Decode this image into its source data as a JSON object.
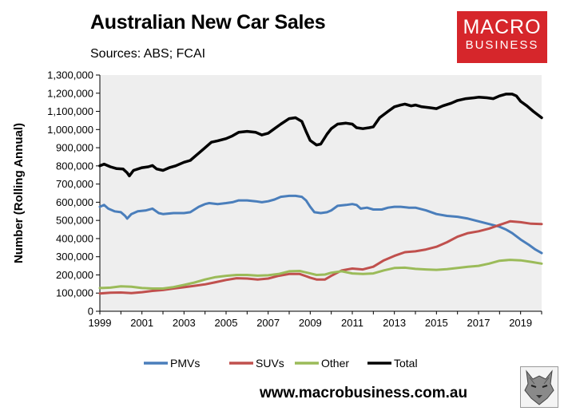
{
  "header": {
    "title": "Australian New Car Sales",
    "subtitle": "Sources: ABS; FCAI"
  },
  "logo": {
    "line1": "MACRO",
    "line2": "BUSINESS",
    "color": "#d6262b"
  },
  "footer": {
    "url": "www.macrobusiness.com.au"
  },
  "colors": {
    "pmv": "#4a7ebb",
    "suv": "#c0504d",
    "other": "#9bbb59",
    "total": "#000000",
    "plot_bg": "#eeeeee"
  },
  "chart_data": {
    "type": "line",
    "title": "Australian New Car Sales",
    "ylabel": "Number (Rolling Annual)",
    "xlabel": "",
    "xlim": [
      1999,
      2020
    ],
    "ylim": [
      0,
      1300000
    ],
    "x_ticks": [
      "1999",
      "2001",
      "2003",
      "2005",
      "2007",
      "2009",
      "2011",
      "2013",
      "2015",
      "2017",
      "2019"
    ],
    "x_tick_values": [
      1999,
      2001,
      2003,
      2005,
      2007,
      2009,
      2011,
      2013,
      2015,
      2017,
      2019
    ],
    "y_ticks": [
      "0",
      "100,000",
      "200,000",
      "300,000",
      "400,000",
      "500,000",
      "600,000",
      "700,000",
      "800,000",
      "900,000",
      "1,000,000",
      "1,100,000",
      "1,200,000",
      "1,300,000"
    ],
    "y_tick_values": [
      0,
      100000,
      200000,
      300000,
      400000,
      500000,
      600000,
      700000,
      800000,
      900000,
      1000000,
      1100000,
      1200000,
      1300000
    ],
    "grid": false,
    "legend_position": "bottom",
    "series": [
      {
        "name": "PMVs",
        "color": "#4a7ebb",
        "points": [
          [
            1999.0,
            575000
          ],
          [
            1999.2,
            585000
          ],
          [
            1999.4,
            565000
          ],
          [
            1999.7,
            550000
          ],
          [
            2000.0,
            545000
          ],
          [
            2000.2,
            525000
          ],
          [
            2000.3,
            510000
          ],
          [
            2000.5,
            535000
          ],
          [
            2000.8,
            550000
          ],
          [
            2001.2,
            555000
          ],
          [
            2001.5,
            565000
          ],
          [
            2001.8,
            540000
          ],
          [
            2002.0,
            535000
          ],
          [
            2002.5,
            540000
          ],
          [
            2003.0,
            540000
          ],
          [
            2003.3,
            545000
          ],
          [
            2003.7,
            575000
          ],
          [
            2004.0,
            590000
          ],
          [
            2004.2,
            595000
          ],
          [
            2004.6,
            590000
          ],
          [
            2005.0,
            595000
          ],
          [
            2005.3,
            600000
          ],
          [
            2005.6,
            610000
          ],
          [
            2006.0,
            610000
          ],
          [
            2006.4,
            605000
          ],
          [
            2006.7,
            600000
          ],
          [
            2007.0,
            605000
          ],
          [
            2007.3,
            615000
          ],
          [
            2007.6,
            630000
          ],
          [
            2008.0,
            635000
          ],
          [
            2008.3,
            635000
          ],
          [
            2008.6,
            630000
          ],
          [
            2008.8,
            610000
          ],
          [
            2009.0,
            575000
          ],
          [
            2009.2,
            545000
          ],
          [
            2009.5,
            540000
          ],
          [
            2009.8,
            545000
          ],
          [
            2010.0,
            555000
          ],
          [
            2010.3,
            580000
          ],
          [
            2010.7,
            585000
          ],
          [
            2011.0,
            590000
          ],
          [
            2011.2,
            585000
          ],
          [
            2011.4,
            565000
          ],
          [
            2011.7,
            570000
          ],
          [
            2012.0,
            560000
          ],
          [
            2012.4,
            560000
          ],
          [
            2012.7,
            570000
          ],
          [
            2013.0,
            575000
          ],
          [
            2013.3,
            575000
          ],
          [
            2013.7,
            570000
          ],
          [
            2014.0,
            570000
          ],
          [
            2014.5,
            555000
          ],
          [
            2015.0,
            535000
          ],
          [
            2015.5,
            525000
          ],
          [
            2016.0,
            520000
          ],
          [
            2016.5,
            510000
          ],
          [
            2017.0,
            495000
          ],
          [
            2017.5,
            480000
          ],
          [
            2018.0,
            465000
          ],
          [
            2018.3,
            450000
          ],
          [
            2018.6,
            430000
          ],
          [
            2019.0,
            395000
          ],
          [
            2019.4,
            365000
          ],
          [
            2019.7,
            340000
          ],
          [
            2020.0,
            320000
          ]
        ]
      },
      {
        "name": "SUVs",
        "color": "#c0504d",
        "points": [
          [
            1999.0,
            98000
          ],
          [
            1999.5,
            102000
          ],
          [
            2000.0,
            103000
          ],
          [
            2000.5,
            100000
          ],
          [
            2001.0,
            105000
          ],
          [
            2001.5,
            112000
          ],
          [
            2002.0,
            117000
          ],
          [
            2002.5,
            125000
          ],
          [
            2003.0,
            132000
          ],
          [
            2003.5,
            140000
          ],
          [
            2004.0,
            148000
          ],
          [
            2004.5,
            160000
          ],
          [
            2005.0,
            172000
          ],
          [
            2005.5,
            182000
          ],
          [
            2006.0,
            180000
          ],
          [
            2006.5,
            175000
          ],
          [
            2007.0,
            180000
          ],
          [
            2007.5,
            195000
          ],
          [
            2008.0,
            205000
          ],
          [
            2008.5,
            205000
          ],
          [
            2009.0,
            185000
          ],
          [
            2009.3,
            175000
          ],
          [
            2009.7,
            175000
          ],
          [
            2010.0,
            195000
          ],
          [
            2010.5,
            225000
          ],
          [
            2011.0,
            235000
          ],
          [
            2011.5,
            230000
          ],
          [
            2012.0,
            245000
          ],
          [
            2012.5,
            280000
          ],
          [
            2013.0,
            305000
          ],
          [
            2013.5,
            325000
          ],
          [
            2014.0,
            330000
          ],
          [
            2014.5,
            340000
          ],
          [
            2015.0,
            355000
          ],
          [
            2015.5,
            380000
          ],
          [
            2016.0,
            410000
          ],
          [
            2016.5,
            430000
          ],
          [
            2017.0,
            440000
          ],
          [
            2017.5,
            455000
          ],
          [
            2018.0,
            475000
          ],
          [
            2018.5,
            495000
          ],
          [
            2019.0,
            490000
          ],
          [
            2019.5,
            482000
          ],
          [
            2020.0,
            480000
          ]
        ]
      },
      {
        "name": "Other",
        "color": "#9bbb59",
        "points": [
          [
            1999.0,
            128000
          ],
          [
            1999.5,
            130000
          ],
          [
            2000.0,
            137000
          ],
          [
            2000.5,
            135000
          ],
          [
            2001.0,
            128000
          ],
          [
            2001.5,
            125000
          ],
          [
            2002.0,
            125000
          ],
          [
            2002.5,
            133000
          ],
          [
            2003.0,
            145000
          ],
          [
            2003.5,
            158000
          ],
          [
            2004.0,
            175000
          ],
          [
            2004.5,
            188000
          ],
          [
            2005.0,
            195000
          ],
          [
            2005.5,
            200000
          ],
          [
            2006.0,
            200000
          ],
          [
            2006.5,
            196000
          ],
          [
            2007.0,
            198000
          ],
          [
            2007.5,
            205000
          ],
          [
            2008.0,
            220000
          ],
          [
            2008.5,
            222000
          ],
          [
            2009.0,
            208000
          ],
          [
            2009.3,
            200000
          ],
          [
            2009.7,
            202000
          ],
          [
            2010.0,
            212000
          ],
          [
            2010.5,
            220000
          ],
          [
            2011.0,
            208000
          ],
          [
            2011.5,
            205000
          ],
          [
            2012.0,
            208000
          ],
          [
            2012.5,
            225000
          ],
          [
            2013.0,
            238000
          ],
          [
            2013.5,
            240000
          ],
          [
            2014.0,
            233000
          ],
          [
            2014.5,
            230000
          ],
          [
            2015.0,
            228000
          ],
          [
            2015.5,
            232000
          ],
          [
            2016.0,
            238000
          ],
          [
            2016.5,
            245000
          ],
          [
            2017.0,
            250000
          ],
          [
            2017.5,
            262000
          ],
          [
            2018.0,
            278000
          ],
          [
            2018.5,
            283000
          ],
          [
            2019.0,
            280000
          ],
          [
            2019.5,
            272000
          ],
          [
            2020.0,
            262000
          ]
        ]
      },
      {
        "name": "Total",
        "color": "#000000",
        "points": [
          [
            1999.0,
            800000
          ],
          [
            1999.2,
            810000
          ],
          [
            1999.5,
            795000
          ],
          [
            1999.8,
            785000
          ],
          [
            2000.1,
            783000
          ],
          [
            2000.3,
            762000
          ],
          [
            2000.4,
            745000
          ],
          [
            2000.6,
            775000
          ],
          [
            2001.0,
            790000
          ],
          [
            2001.3,
            795000
          ],
          [
            2001.5,
            802000
          ],
          [
            2001.7,
            783000
          ],
          [
            2002.0,
            775000
          ],
          [
            2002.3,
            790000
          ],
          [
            2002.6,
            800000
          ],
          [
            2003.0,
            820000
          ],
          [
            2003.3,
            830000
          ],
          [
            2003.6,
            860000
          ],
          [
            2004.0,
            900000
          ],
          [
            2004.3,
            930000
          ],
          [
            2004.6,
            938000
          ],
          [
            2005.0,
            950000
          ],
          [
            2005.3,
            965000
          ],
          [
            2005.6,
            985000
          ],
          [
            2006.0,
            990000
          ],
          [
            2006.4,
            985000
          ],
          [
            2006.7,
            970000
          ],
          [
            2007.0,
            980000
          ],
          [
            2007.3,
            1005000
          ],
          [
            2007.6,
            1030000
          ],
          [
            2008.0,
            1060000
          ],
          [
            2008.3,
            1065000
          ],
          [
            2008.6,
            1045000
          ],
          [
            2008.8,
            990000
          ],
          [
            2009.0,
            940000
          ],
          [
            2009.3,
            915000
          ],
          [
            2009.5,
            920000
          ],
          [
            2009.8,
            975000
          ],
          [
            2010.0,
            1005000
          ],
          [
            2010.3,
            1030000
          ],
          [
            2010.7,
            1035000
          ],
          [
            2011.0,
            1030000
          ],
          [
            2011.2,
            1010000
          ],
          [
            2011.5,
            1005000
          ],
          [
            2011.8,
            1010000
          ],
          [
            2012.0,
            1015000
          ],
          [
            2012.3,
            1065000
          ],
          [
            2012.7,
            1100000
          ],
          [
            2013.0,
            1125000
          ],
          [
            2013.3,
            1135000
          ],
          [
            2013.5,
            1140000
          ],
          [
            2013.8,
            1130000
          ],
          [
            2014.0,
            1135000
          ],
          [
            2014.3,
            1125000
          ],
          [
            2014.7,
            1120000
          ],
          [
            2015.0,
            1115000
          ],
          [
            2015.3,
            1130000
          ],
          [
            2015.7,
            1145000
          ],
          [
            2016.0,
            1160000
          ],
          [
            2016.4,
            1170000
          ],
          [
            2016.8,
            1175000
          ],
          [
            2017.0,
            1178000
          ],
          [
            2017.4,
            1175000
          ],
          [
            2017.7,
            1170000
          ],
          [
            2018.0,
            1185000
          ],
          [
            2018.3,
            1195000
          ],
          [
            2018.6,
            1195000
          ],
          [
            2018.8,
            1185000
          ],
          [
            2019.0,
            1155000
          ],
          [
            2019.3,
            1130000
          ],
          [
            2019.6,
            1100000
          ],
          [
            2020.0,
            1065000
          ]
        ]
      }
    ]
  }
}
